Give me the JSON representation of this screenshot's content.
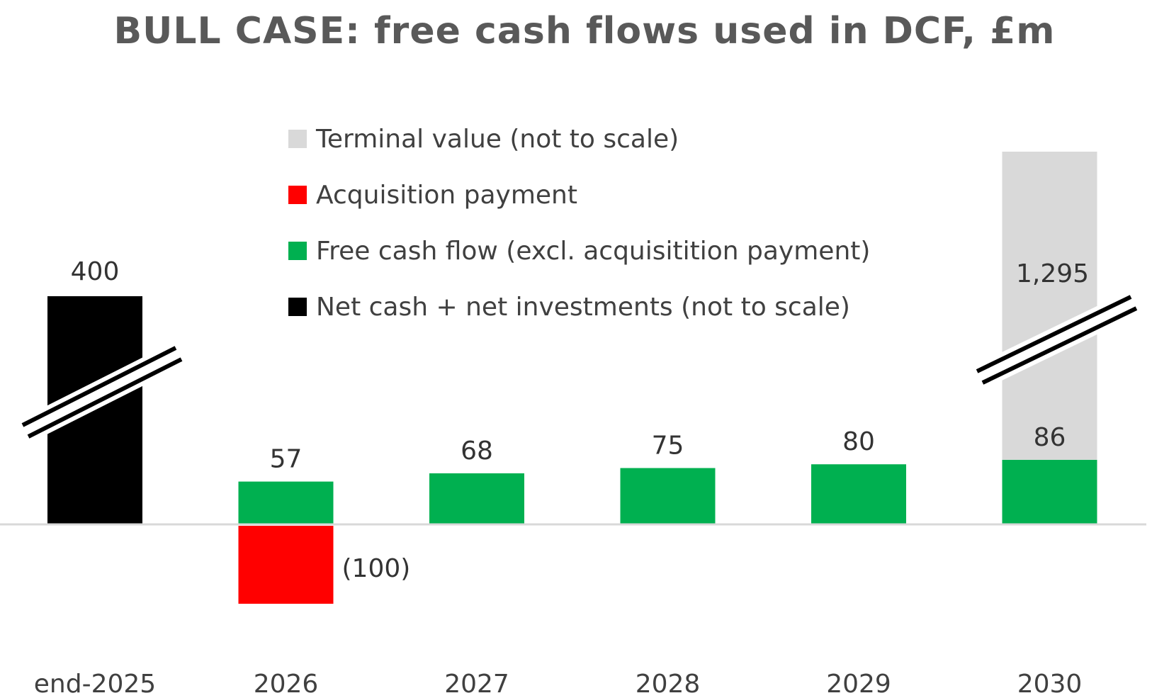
{
  "chart_data": {
    "type": "bar",
    "title": "BULL CASE: free cash flows used in DCF, £m",
    "xlabel": "",
    "ylabel": "",
    "categories": [
      "end-2025",
      "2026",
      "2027",
      "2028",
      "2029",
      "2030"
    ],
    "series": [
      {
        "name": "Net cash + net investments (not to scale)",
        "color": "#000000",
        "values": [
          400,
          null,
          null,
          null,
          null,
          null
        ],
        "labels": [
          "400",
          "",
          "",
          "",
          "",
          ""
        ]
      },
      {
        "name": "Free cash flow (excl. acquisitition payment)",
        "color": "#00B050",
        "values": [
          null,
          57,
          68,
          75,
          80,
          86
        ],
        "labels": [
          "",
          "57",
          "68",
          "75",
          "80",
          "86"
        ]
      },
      {
        "name": "Acquisition payment",
        "color": "#FF0000",
        "values": [
          null,
          -100,
          null,
          null,
          null,
          null
        ],
        "labels": [
          "",
          "(100)",
          "",
          "",
          "",
          ""
        ]
      },
      {
        "name": "Terminal value (not to scale)",
        "color": "#D9D9D9",
        "values": [
          null,
          null,
          null,
          null,
          null,
          1295
        ],
        "labels": [
          "",
          "",
          "",
          "",
          "",
          "1,295"
        ]
      }
    ],
    "legend": [
      {
        "label": "Terminal value (not to scale)",
        "color": "#D9D9D9"
      },
      {
        "label": "Acquisition payment",
        "color": "#FF0000"
      },
      {
        "label": "Free cash flow (excl. acquisitition payment)",
        "color": "#00B050"
      },
      {
        "label": "Net cash + net investments (not to scale)",
        "color": "#000000"
      }
    ],
    "legend_position": "top-center",
    "grid": false,
    "axis_breaks": [
      "end-2025",
      "2030"
    ]
  }
}
